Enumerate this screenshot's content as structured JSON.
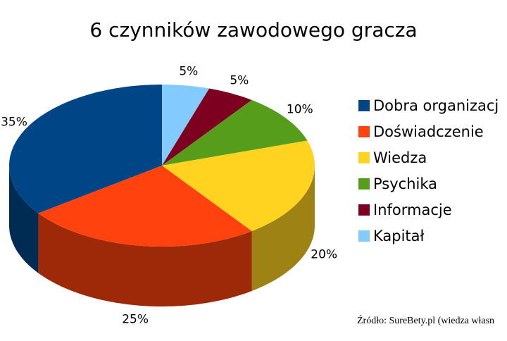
{
  "chart_data": {
    "type": "pie3d",
    "title": "6 czynników zawodowego gracza",
    "categories": [
      "Dobra organizacj",
      "Doświadczenie",
      "Wiedza",
      "Psychika",
      "Informacje",
      "Kapitał"
    ],
    "values": [
      35,
      25,
      20,
      10,
      5,
      5
    ],
    "value_labels": [
      "35%",
      "25%",
      "20%",
      "10%",
      "5%",
      "5%"
    ],
    "colors": [
      "#004586",
      "#ff420e",
      "#ffd320",
      "#579d1c",
      "#7e0021",
      "#83caff"
    ],
    "legend": "right",
    "source": "Źródło: SureBety.pl (wiedza własn"
  }
}
